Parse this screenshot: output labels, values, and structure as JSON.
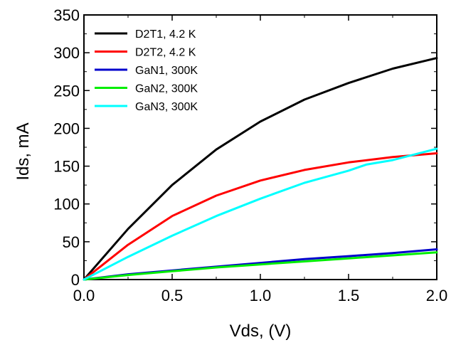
{
  "chart_data": {
    "type": "line",
    "xlabel": "Vds, (V)",
    "ylabel": "Ids, mA",
    "xlim": [
      0.0,
      2.0
    ],
    "ylim": [
      0,
      350
    ],
    "xticks": [
      0.0,
      0.5,
      1.0,
      1.5,
      2.0
    ],
    "xtick_labels": [
      "0.0",
      "0.5",
      "1.0",
      "1.5",
      "2.0"
    ],
    "yticks": [
      0,
      50,
      100,
      150,
      200,
      250,
      300,
      350
    ],
    "ytick_labels": [
      "0",
      "50",
      "100",
      "150",
      "200",
      "250",
      "300",
      "350"
    ],
    "grid": false,
    "legend_position": "top-left",
    "series": [
      {
        "name": "D2T1, 4.2 K",
        "color": "#000000",
        "x": [
          0.0,
          0.25,
          0.5,
          0.75,
          1.0,
          1.25,
          1.5,
          1.75,
          2.0
        ],
        "y": [
          0,
          67,
          125,
          172,
          209,
          238,
          260,
          279,
          293
        ]
      },
      {
        "name": "D2T2, 4.2 K",
        "color": "#ff0000",
        "x": [
          0.0,
          0.25,
          0.5,
          0.75,
          1.0,
          1.25,
          1.5,
          1.75,
          2.0
        ],
        "y": [
          0,
          46,
          84,
          111,
          131,
          145,
          155,
          162,
          167
        ]
      },
      {
        "name": "GaN1, 300K",
        "color": "#0000cc",
        "x": [
          0.0,
          0.25,
          0.5,
          0.75,
          1.0,
          1.25,
          1.5,
          1.75,
          2.0
        ],
        "y": [
          0,
          7,
          12,
          17,
          22,
          27,
          31,
          35,
          40
        ]
      },
      {
        "name": "GaN2, 300K",
        "color": "#00ee00",
        "x": [
          0.0,
          0.25,
          0.5,
          0.75,
          1.0,
          1.25,
          1.5,
          1.75,
          2.0
        ],
        "y": [
          0,
          6,
          11,
          16,
          20,
          24,
          28,
          32,
          36
        ]
      },
      {
        "name": "GaN3, 300K",
        "color": "#00ffff",
        "x": [
          0.0,
          0.25,
          0.5,
          0.75,
          1.0,
          1.25,
          1.5,
          1.6,
          1.75,
          2.0
        ],
        "y": [
          0,
          30,
          58,
          84,
          107,
          128,
          144,
          152,
          158,
          173
        ]
      }
    ]
  }
}
